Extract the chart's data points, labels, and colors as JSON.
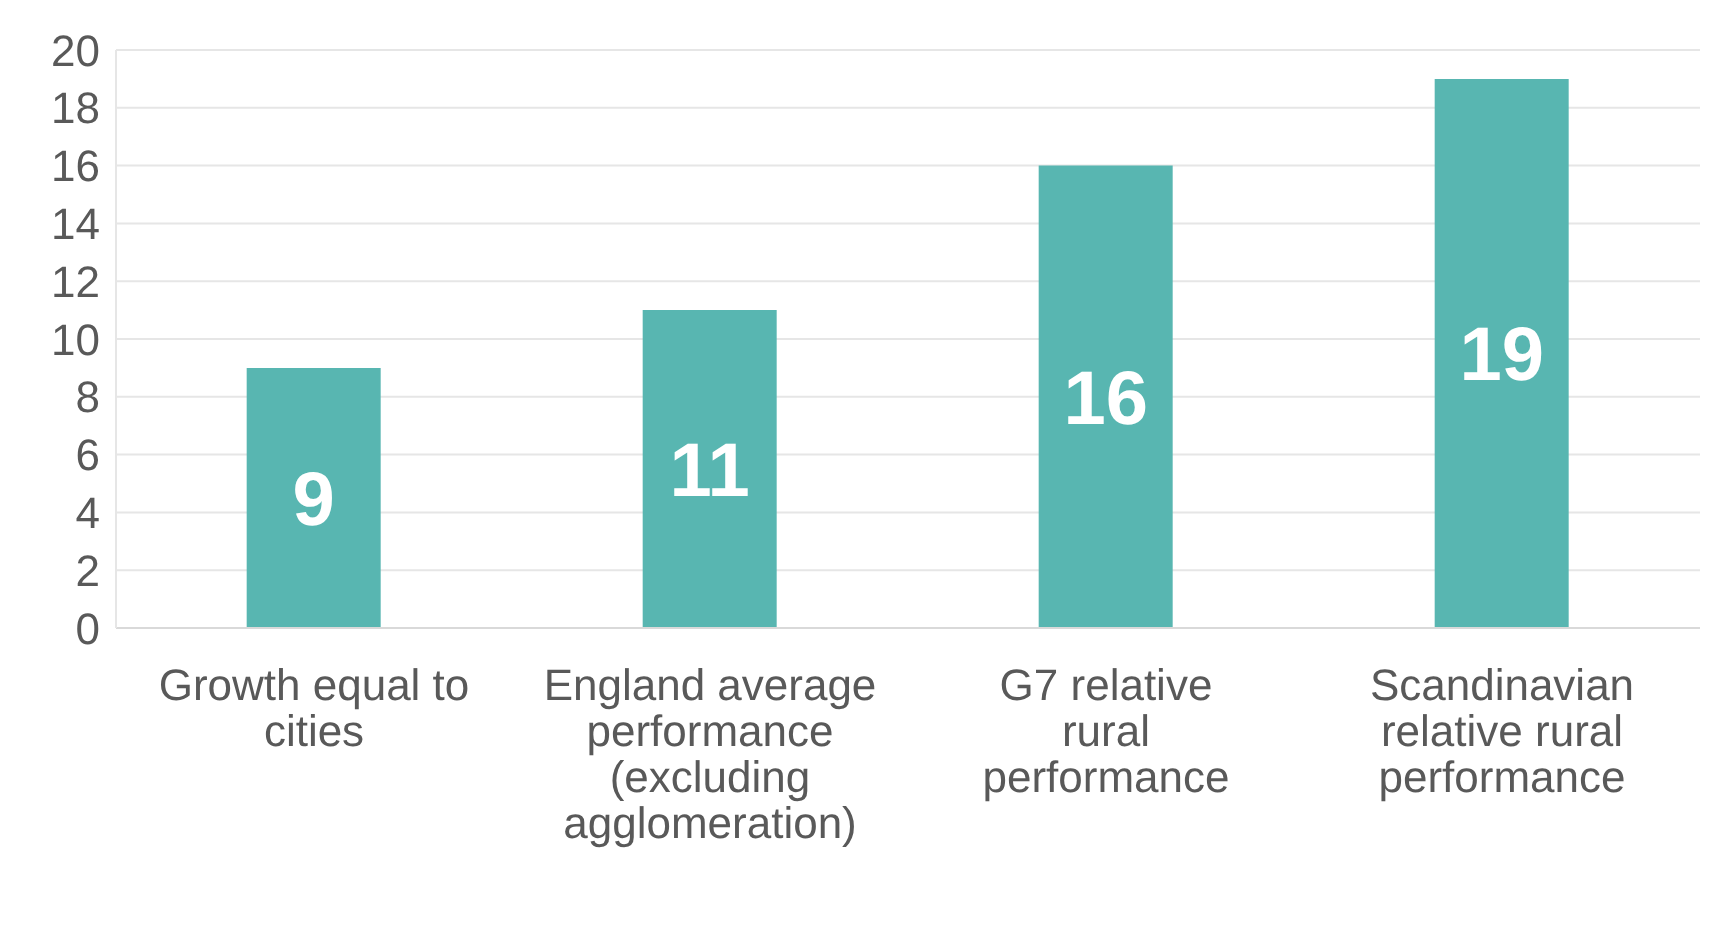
{
  "chart_data": {
    "type": "bar",
    "categories": [
      "Growth equal to cities",
      "England average performance (excluding agglomeration)",
      "G7 relative rural performance",
      "Scandinavian relative rural performance"
    ],
    "values": [
      9,
      11,
      16,
      19
    ],
    "color": "#58b6b1",
    "ylim": [
      0,
      20
    ],
    "yticks": [
      0,
      2,
      4,
      6,
      8,
      10,
      12,
      14,
      16,
      18,
      20
    ],
    "grid": "y",
    "data_labels": true
  }
}
